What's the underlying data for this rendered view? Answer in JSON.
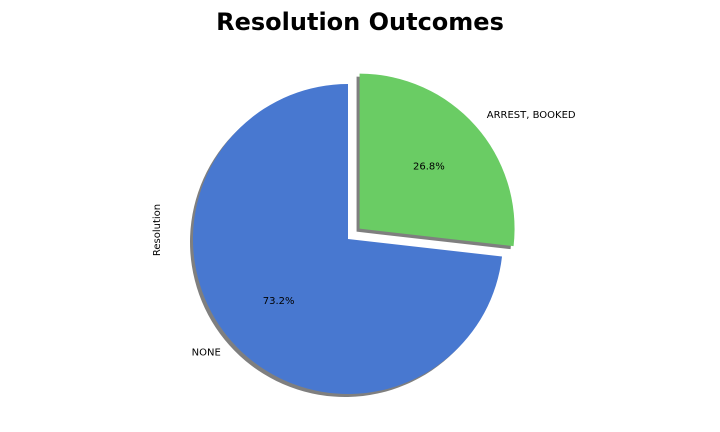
{
  "chart_data": {
    "type": "pie",
    "title": "Resolution Outcomes",
    "ylabel": "Resolution",
    "start_angle_deg": 90,
    "direction": "counterclockwise",
    "shadow": true,
    "slices": [
      {
        "label": "NONE",
        "value": 73.2,
        "pct_label": "73.2%",
        "color": "#4878d0",
        "exploded": false
      },
      {
        "label": "ARREST, BOOKED",
        "value": 26.8,
        "pct_label": "26.8%",
        "color": "#6acc64",
        "exploded": true
      }
    ]
  }
}
